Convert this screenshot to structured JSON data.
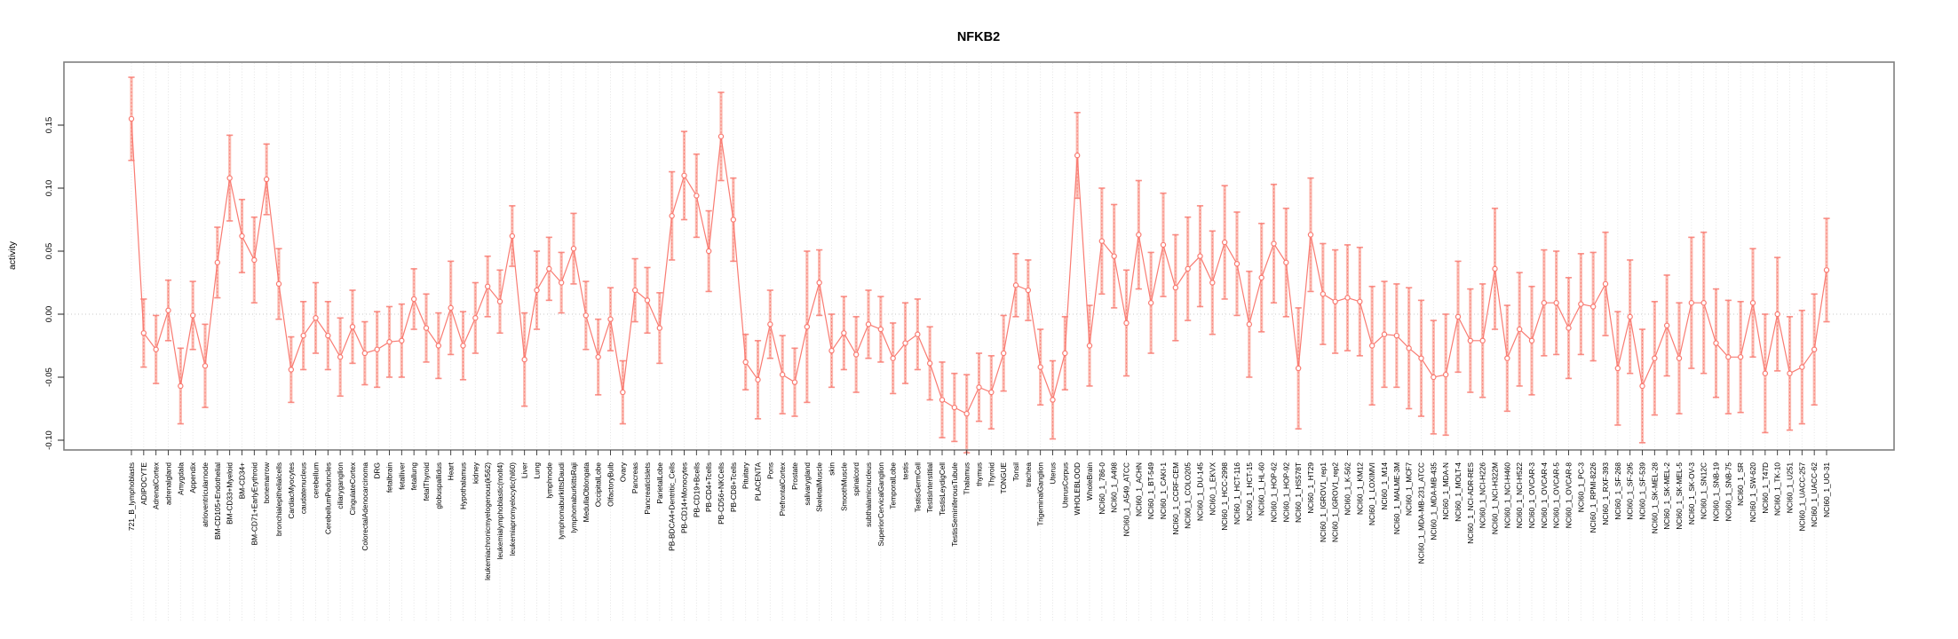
{
  "chart_data": {
    "type": "line",
    "title": "NFKB2",
    "ylabel": "activity",
    "xlabel": "",
    "legend": "none",
    "grid": "vertical-dotted-per-category",
    "zero_line": true,
    "ylim": [
      -0.108,
      0.2
    ],
    "yticks": [
      "-0.10",
      "-0.05",
      "0.00",
      "0.05",
      "0.10",
      "0.15"
    ],
    "ytick_values": [
      -0.1,
      -0.05,
      0.0,
      0.05,
      0.1,
      0.15
    ],
    "colors": {
      "series": "#f97b72",
      "error_bar_fill": "#fbab9f",
      "grid": "#e2e2e2",
      "zero_line": "#c9c9c9",
      "frame": "#7f7f7f",
      "tick": "#333333",
      "text": "#000000",
      "background": "#ffffff"
    },
    "categories": [
      "721_B_lymphoblasts",
      "ADIPOCYTE",
      "AdrenalCortex",
      "adrenalgland",
      "Amygdala",
      "Appendix",
      "atrioventricularnode",
      "BM-CD105+Endothelial",
      "BM-CD33+Myeloid",
      "BM-CD34+",
      "BM-CD71+EarlyErythroid",
      "bonemarrow",
      "bronchialepithelialcells",
      "CardiacMyocytes",
      "caudatenucleus",
      "cerebellum",
      "CerebellumPeduncles",
      "ciliaryganglion",
      "CingulateCortex",
      "ColorectalAdenocarcinoma",
      "DRG",
      "fetalbrain",
      "fetalliver",
      "fetallung",
      "fetalThyroid",
      "globuspallidus",
      "Heart",
      "Hypothalamus",
      "kidney",
      "leukemiachronicmyelogenous(k562)",
      "leukemialymphoblastic(molt4)",
      "leukemiapromyelocytic(hl60)",
      "Liver",
      "Lung",
      "lymphnode",
      "lymphomaburkittsDaudi",
      "lymphomaburkittsRaji",
      "MedullaOblongata",
      "OccipitalLobe",
      "OlfactoryBulb",
      "Ovary",
      "Pancreas",
      "PancreaticIslets",
      "ParietalLobe",
      "PB-BDCA4+Dentritic_Cells",
      "PB-CD14+Monocytes",
      "PB-CD19+Bcells",
      "PB-CD4+Tcells",
      "PB-CD56+NKCells",
      "PB-CD8+Tcells",
      "Pituitary",
      "PLACENTA",
      "Pons",
      "PrefrontalCortex",
      "Prostate",
      "salivarygland",
      "SkeletalMuscle",
      "skin",
      "SmoothMuscle",
      "spinalcord",
      "subthalamicnucleus",
      "SuperiorCervicalGanglion",
      "TemporalLobe",
      "testis",
      "TestisGermCell",
      "TestisInterstitial",
      "TestisLeydigCell",
      "TestisSeminiferousTubule",
      "Thalamus",
      "thymus",
      "Thyroid",
      "TONGUE",
      "Tonsil",
      "trachea",
      "TrigeminalGanglion",
      "Uterus",
      "UterusCorpus",
      "WHOLEBLOOD",
      "WholeBrain",
      "NCI60_1_786-0",
      "NCI60_1_A498",
      "NCI60_1_A549_ATCC",
      "NCI60_1_ACHN",
      "NCI60_1_BT-549",
      "NCI60_1_CAKI-1",
      "NCI60_1_CCRF-CEM",
      "NCI60_1_COLO205",
      "NCI60_1_DU-145",
      "NCI60_1_EKVX",
      "NCI60_1_HCC-2998",
      "NCI60_1_HCT-116",
      "NCI60_1_HCT-15",
      "NCI60_1_HL-60",
      "NCI60_1_HOP-62",
      "NCI60_1_HOP-92",
      "NCI60_1_HS578T",
      "NCI60_1_HT29",
      "NCI60_1_IGROV1_rep1",
      "NCI60_1_IGROV1_rep2",
      "NCI60_1_K-562",
      "NCI60_1_KM12",
      "NCI60_1_LOXIMVI",
      "NCI60_1_M14",
      "NCI60_1_MALME-3M",
      "NCI60_1_MCF7",
      "NCI60_1_MDA-MB-231_ATCC",
      "NCI60_1_MDA-MB-435",
      "NCI60_1_MDA-N",
      "NCI60_1_MOLT-4",
      "NCI60_1_NCI-ADR-RES",
      "NCI60_1_NCI-H226",
      "NCI60_1_NCI-H322M",
      "NCI60_1_NCI-H460",
      "NCI60_1_NCI-H522",
      "NCI60_1_OVCAR-3",
      "NCI60_1_OVCAR-4",
      "NCI60_1_OVCAR-5",
      "NCI60_1_OVCAR-8",
      "NCI60_1_PC-3",
      "NCI60_1_RPMI-8226",
      "NCI60_1_RXF-393",
      "NCI60_1_SF-268",
      "NCI60_1_SF-295",
      "NCI60_1_SF-539",
      "NCI60_1_SK-MEL-28",
      "NCI60_1_SK-MEL-2",
      "NCI60_1_SK-MEL-5",
      "NCI60_1_SK-OV-3",
      "NCI60_1_SN12C",
      "NCI60_1_SNB-19",
      "NCI60_1_SNB-75",
      "NCI60_1_SR",
      "NCI60_1_SW-620",
      "NCI60_1_T47D",
      "NCI60_1_TK-10",
      "NCI60_1_U251",
      "NCI60_1_UACC-257",
      "NCI60_1_UACC-62",
      "NCI60_1_UO-31"
    ],
    "series": [
      {
        "name": "activity",
        "values": [
          0.155,
          -0.015,
          -0.028,
          0.003,
          -0.057,
          -0.001,
          -0.041,
          0.041,
          0.108,
          0.062,
          0.043,
          0.107,
          0.024,
          -0.044,
          -0.017,
          -0.003,
          -0.017,
          -0.034,
          -0.01,
          -0.031,
          -0.028,
          -0.022,
          -0.021,
          0.012,
          -0.011,
          -0.025,
          0.005,
          -0.025,
          -0.003,
          0.022,
          0.01,
          0.062,
          -0.036,
          0.019,
          0.036,
          0.025,
          0.052,
          -0.001,
          -0.034,
          -0.004,
          -0.062,
          0.019,
          0.011,
          -0.011,
          0.078,
          0.11,
          0.094,
          0.05,
          0.141,
          0.075,
          -0.038,
          -0.052,
          -0.008,
          -0.048,
          -0.054,
          -0.01,
          0.025,
          -0.029,
          -0.015,
          -0.032,
          -0.008,
          -0.012,
          -0.035,
          -0.023,
          -0.016,
          -0.039,
          -0.068,
          -0.074,
          -0.079,
          -0.058,
          -0.062,
          -0.031,
          0.023,
          0.019,
          -0.042,
          -0.068,
          -0.031,
          0.126,
          -0.025,
          0.058,
          0.046,
          -0.007,
          0.063,
          0.009,
          0.055,
          0.021,
          0.036,
          0.046,
          0.025,
          0.057,
          0.04,
          -0.008,
          0.029,
          0.056,
          0.041,
          -0.043,
          0.063,
          0.016,
          0.01,
          0.013,
          0.01,
          -0.025,
          -0.016,
          -0.017,
          -0.027,
          -0.035,
          -0.05,
          -0.048,
          -0.002,
          -0.021,
          -0.021,
          0.036,
          -0.035,
          -0.012,
          -0.021,
          0.009,
          0.009,
          -0.011,
          0.008,
          0.006,
          0.024,
          -0.043,
          -0.002,
          -0.057,
          -0.035,
          -0.009,
          -0.035,
          0.009,
          0.009,
          -0.023,
          -0.034,
          -0.034,
          0.009,
          -0.047,
          0.0,
          -0.047,
          -0.042,
          -0.028,
          0.035
        ],
        "errors": [
          0.033,
          0.027,
          0.027,
          0.024,
          0.03,
          0.027,
          0.033,
          0.028,
          0.034,
          0.029,
          0.034,
          0.028,
          0.028,
          0.026,
          0.027,
          0.028,
          0.027,
          0.031,
          0.029,
          0.025,
          0.03,
          0.028,
          0.029,
          0.024,
          0.027,
          0.026,
          0.037,
          0.027,
          0.028,
          0.024,
          0.025,
          0.024,
          0.037,
          0.031,
          0.025,
          0.024,
          0.028,
          0.027,
          0.03,
          0.025,
          0.025,
          0.025,
          0.026,
          0.028,
          0.035,
          0.035,
          0.033,
          0.032,
          0.035,
          0.033,
          0.022,
          0.031,
          0.027,
          0.031,
          0.027,
          0.06,
          0.026,
          0.029,
          0.029,
          0.03,
          0.027,
          0.026,
          0.028,
          0.032,
          0.028,
          0.029,
          0.03,
          0.027,
          0.031,
          0.027,
          0.029,
          0.03,
          0.025,
          0.024,
          0.03,
          0.031,
          0.029,
          0.034,
          0.032,
          0.042,
          0.041,
          0.042,
          0.043,
          0.04,
          0.041,
          0.042,
          0.041,
          0.04,
          0.041,
          0.045,
          0.041,
          0.042,
          0.043,
          0.047,
          0.043,
          0.048,
          0.045,
          0.04,
          0.041,
          0.042,
          0.043,
          0.047,
          0.042,
          0.041,
          0.048,
          0.046,
          0.045,
          0.048,
          0.044,
          0.041,
          0.045,
          0.048,
          0.042,
          0.045,
          0.043,
          0.042,
          0.041,
          0.04,
          0.04,
          0.043,
          0.041,
          0.045,
          0.045,
          0.045,
          0.045,
          0.04,
          0.044,
          0.052,
          0.056,
          0.043,
          0.045,
          0.044,
          0.043,
          0.047,
          0.045,
          0.045,
          0.045,
          0.044,
          0.041
        ]
      }
    ]
  }
}
